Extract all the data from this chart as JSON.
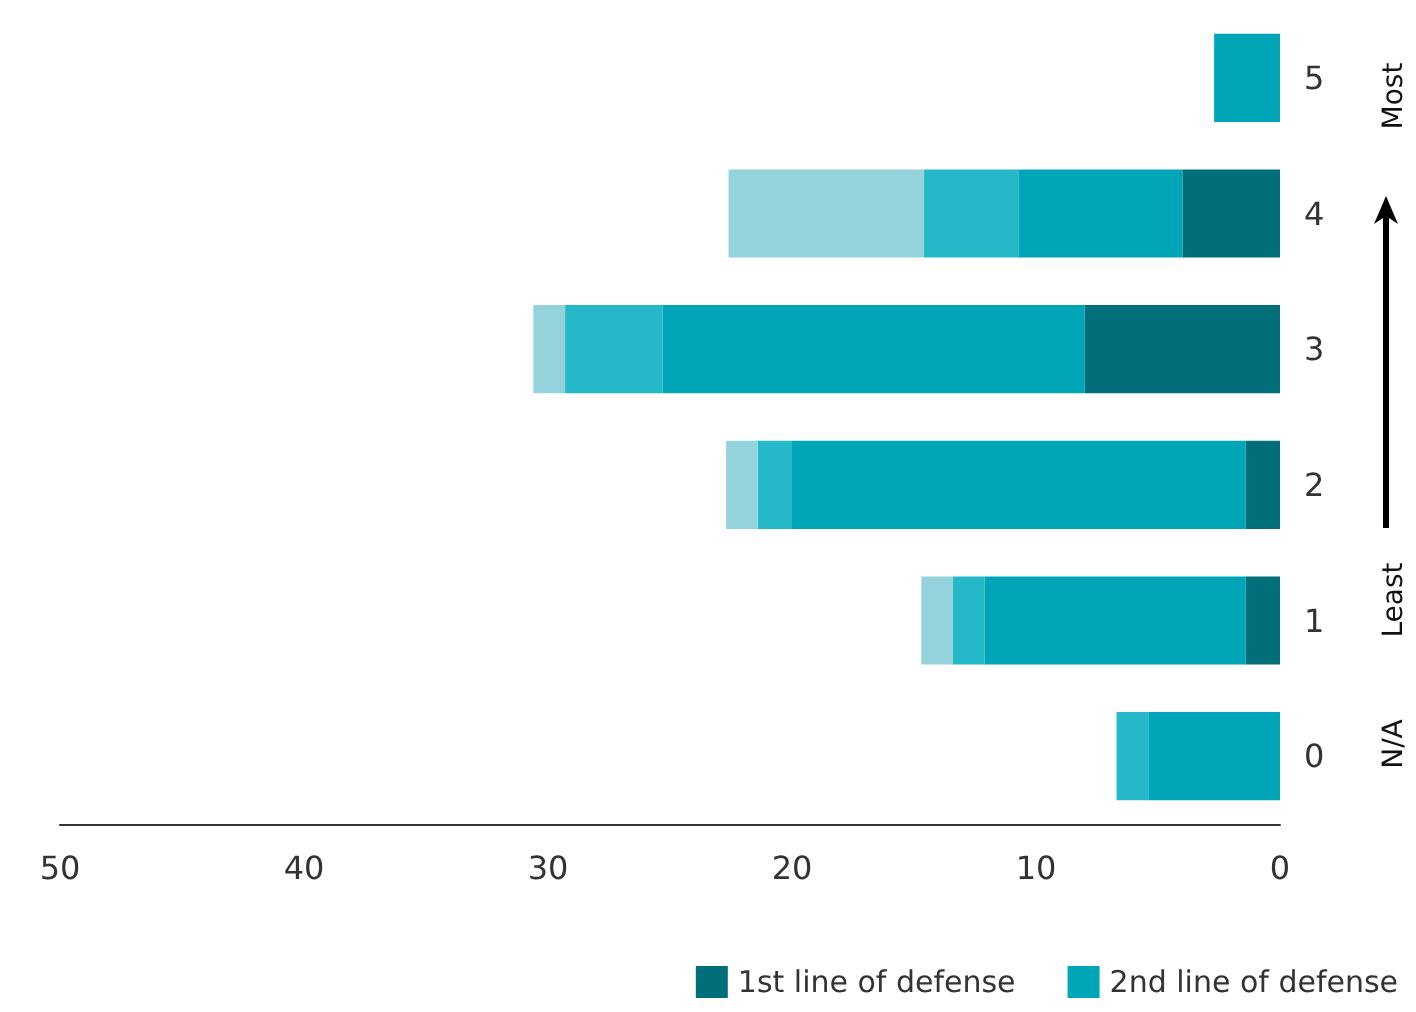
{
  "chart_data": {
    "type": "bar",
    "orientation": "horizontal",
    "stacked": true,
    "categories": [
      "5",
      "4",
      "3",
      "2",
      "1",
      "0"
    ],
    "series": [
      {
        "name": "1st line of defense",
        "color": "#016f79",
        "values": [
          0,
          4.0,
          8.0,
          1.4,
          1.4,
          0
        ]
      },
      {
        "name": "2nd line of defense",
        "color": "#00a5b8",
        "values": [
          2.7,
          6.7,
          17.3,
          18.6,
          10.7,
          5.4
        ]
      },
      {
        "color": "#24b8c8",
        "values": [
          0,
          3.9,
          4.0,
          1.4,
          1.3,
          1.3
        ]
      },
      {
        "color": "#94d2dc",
        "values": [
          0,
          8.0,
          1.3,
          1.3,
          1.3,
          0
        ]
      }
    ],
    "xlim": [
      50,
      0
    ],
    "xticks": [
      50,
      40,
      30,
      20,
      10,
      0
    ],
    "grid": false,
    "legend": "bottom right",
    "annotations": [
      "Most",
      "Least",
      "N/A"
    ]
  }
}
